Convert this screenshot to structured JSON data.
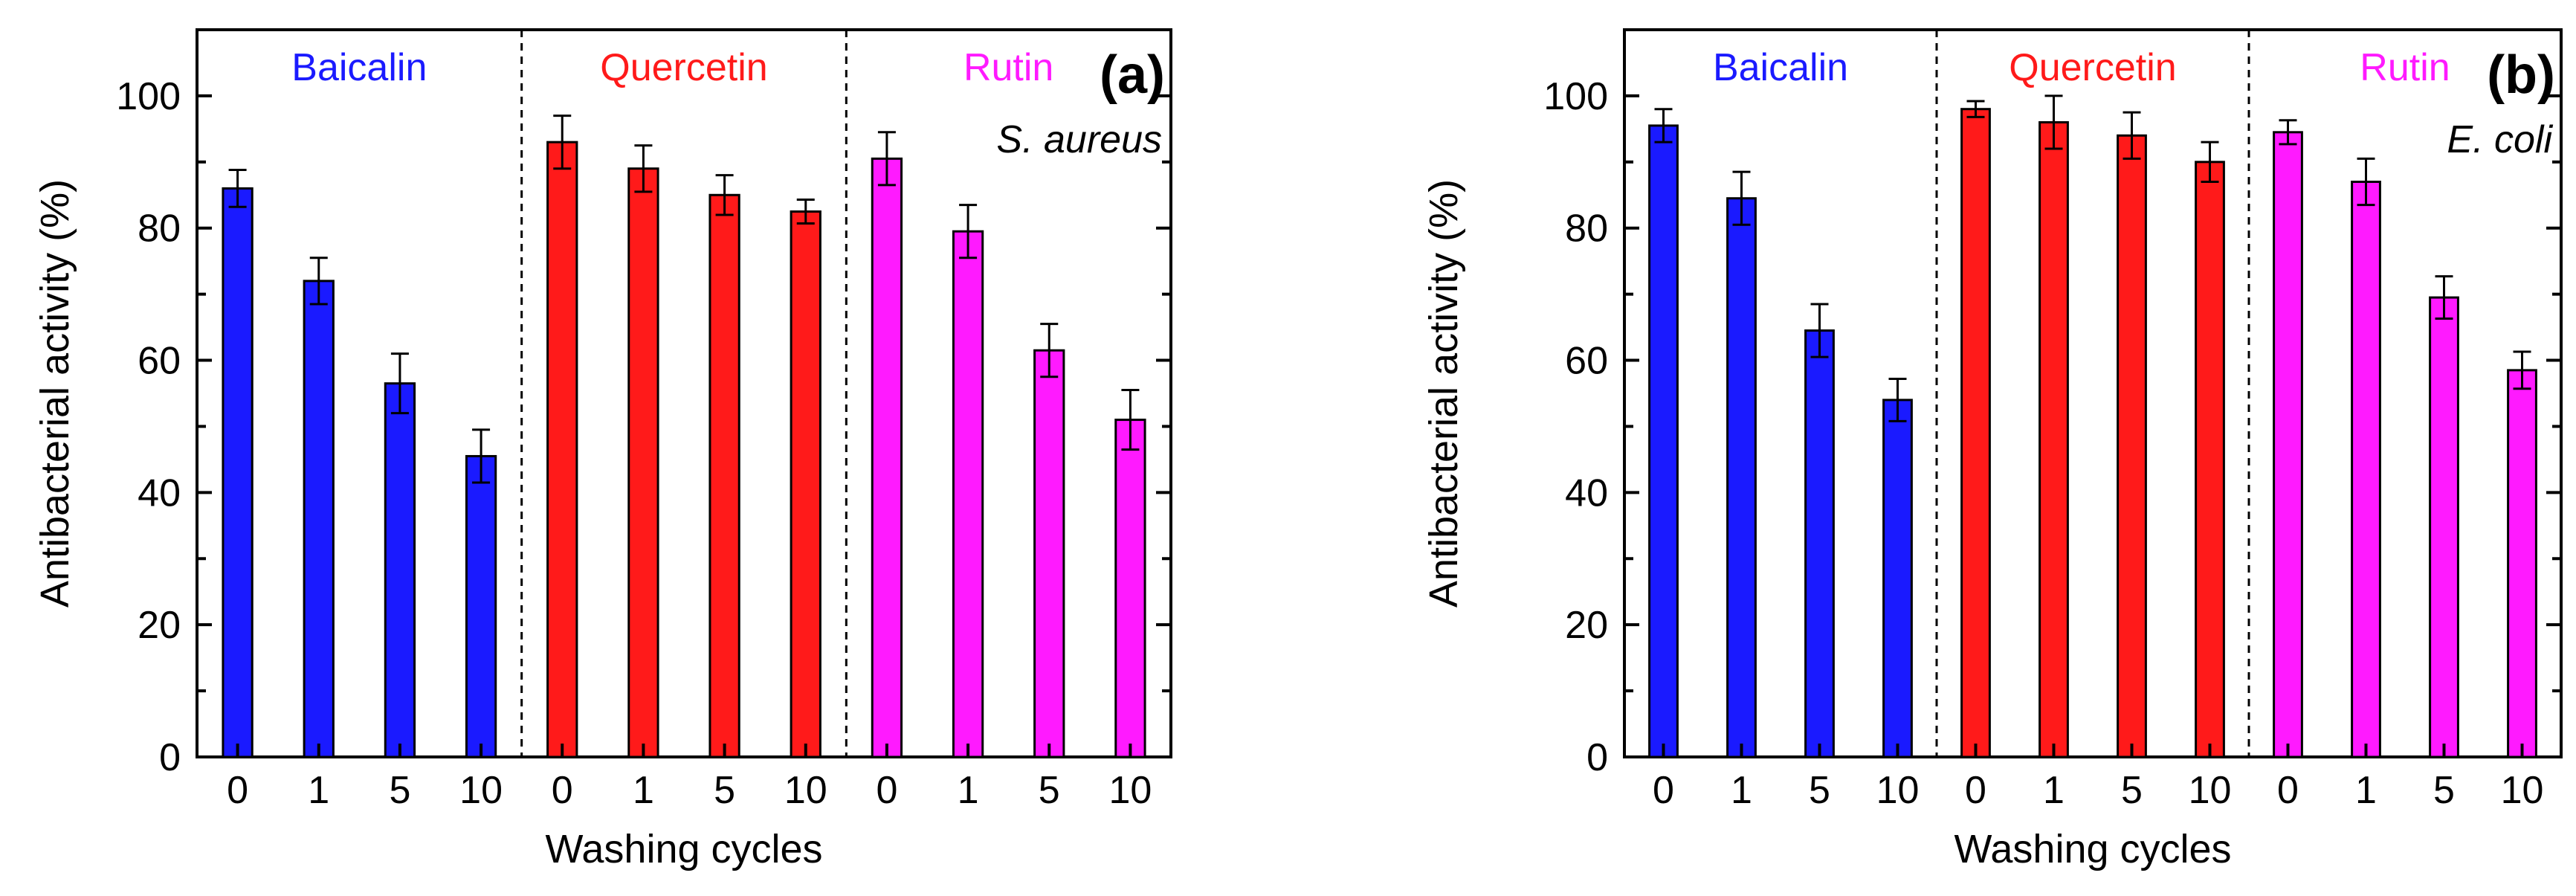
{
  "chart_data": [
    {
      "type": "bar",
      "panel_label": "(a)",
      "organism": "S. aureus",
      "xlabel": "Washing cycles",
      "ylabel": "Antibacterial activity (%)",
      "ylim": [
        0,
        110
      ],
      "yticks": [
        "0",
        "20",
        "40",
        "60",
        "80",
        "100"
      ],
      "grid": false,
      "groups": [
        {
          "name": "Baicalin",
          "color": "#1a1aff",
          "categories": [
            "0",
            "1",
            "5",
            "10"
          ],
          "values": [
            86,
            72,
            56.5,
            45.5
          ],
          "errors": [
            2.8,
            3.5,
            4.5,
            4
          ]
        },
        {
          "name": "Quercetin",
          "color": "#ff1a1a",
          "categories": [
            "0",
            "1",
            "5",
            "10"
          ],
          "values": [
            93,
            89,
            85,
            82.5
          ],
          "errors": [
            4,
            3.5,
            3,
            1.8
          ]
        },
        {
          "name": "Rutin",
          "color": "#ff1aff",
          "categories": [
            "0",
            "1",
            "5",
            "10"
          ],
          "values": [
            90.5,
            79.5,
            61.5,
            51
          ],
          "errors": [
            4,
            4,
            4,
            4.5
          ]
        }
      ]
    },
    {
      "type": "bar",
      "panel_label": "(b)",
      "organism": "E. coli",
      "xlabel": "Washing cycles",
      "ylabel": "Antibacterial activity (%)",
      "ylim": [
        0,
        110
      ],
      "yticks": [
        "0",
        "20",
        "40",
        "60",
        "80",
        "100"
      ],
      "grid": false,
      "groups": [
        {
          "name": "Baicalin",
          "color": "#1a1aff",
          "categories": [
            "0",
            "1",
            "5",
            "10"
          ],
          "values": [
            95.5,
            84.5,
            64.5,
            54
          ],
          "errors": [
            2.5,
            4,
            4,
            3.2
          ]
        },
        {
          "name": "Quercetin",
          "color": "#ff1a1a",
          "categories": [
            "0",
            "1",
            "5",
            "10"
          ],
          "values": [
            98,
            96,
            94,
            90
          ],
          "errors": [
            1.2,
            4,
            3.5,
            3
          ]
        },
        {
          "name": "Rutin",
          "color": "#ff1aff",
          "categories": [
            "0",
            "1",
            "5",
            "10"
          ],
          "values": [
            94.5,
            87,
            69.5,
            58.5
          ],
          "errors": [
            1.8,
            3.5,
            3.2,
            2.8
          ]
        }
      ]
    }
  ]
}
